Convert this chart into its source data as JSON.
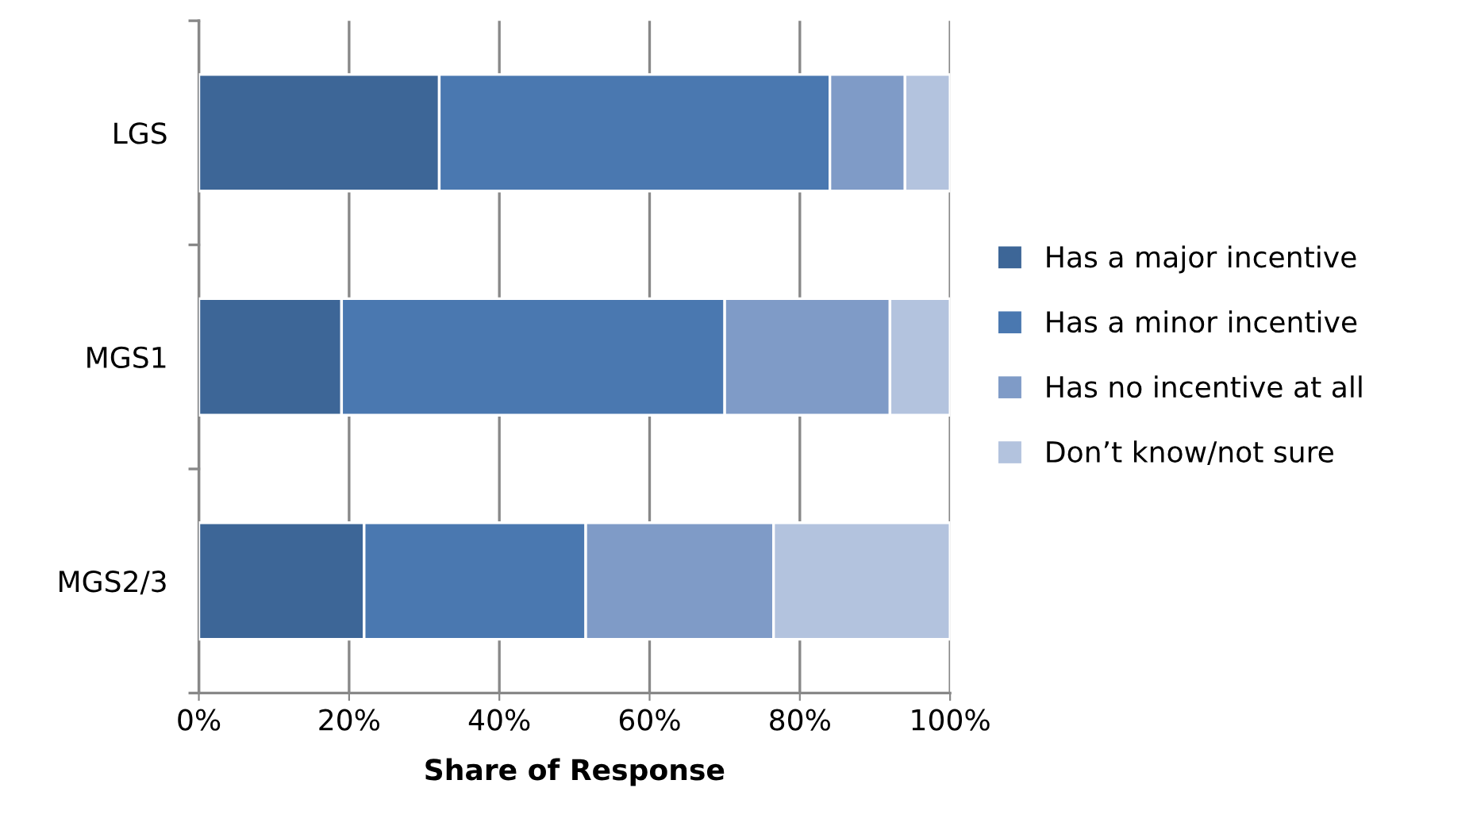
{
  "chart_data": {
    "type": "bar",
    "orientation": "horizontal",
    "stacked": true,
    "xlabel": "Share of Response",
    "categories": [
      "LGS",
      "MGS1",
      "MGS2/3"
    ],
    "series": [
      {
        "name": "Has a major incentive",
        "color": "#3d6697",
        "values": [
          32,
          19,
          22
        ]
      },
      {
        "name": "Has a minor incentive",
        "color": "#4a78b0",
        "values": [
          52,
          51,
          29.5
        ]
      },
      {
        "name": "Has no incentive at all",
        "color": "#7f9bc7",
        "values": [
          10,
          22,
          25
        ]
      },
      {
        "name": "Don’t know/not sure",
        "color": "#b3c3de",
        "values": [
          6,
          8,
          23.5
        ]
      }
    ],
    "xlim": [
      0,
      100
    ],
    "xticks": [
      {
        "value": 0,
        "label": "0%"
      },
      {
        "value": 20,
        "label": "20%"
      },
      {
        "value": 40,
        "label": "40%"
      },
      {
        "value": 60,
        "label": "60%"
      },
      {
        "value": 80,
        "label": "80%"
      },
      {
        "value": 100,
        "label": "100%"
      }
    ],
    "grid": "x",
    "legend": "right"
  }
}
